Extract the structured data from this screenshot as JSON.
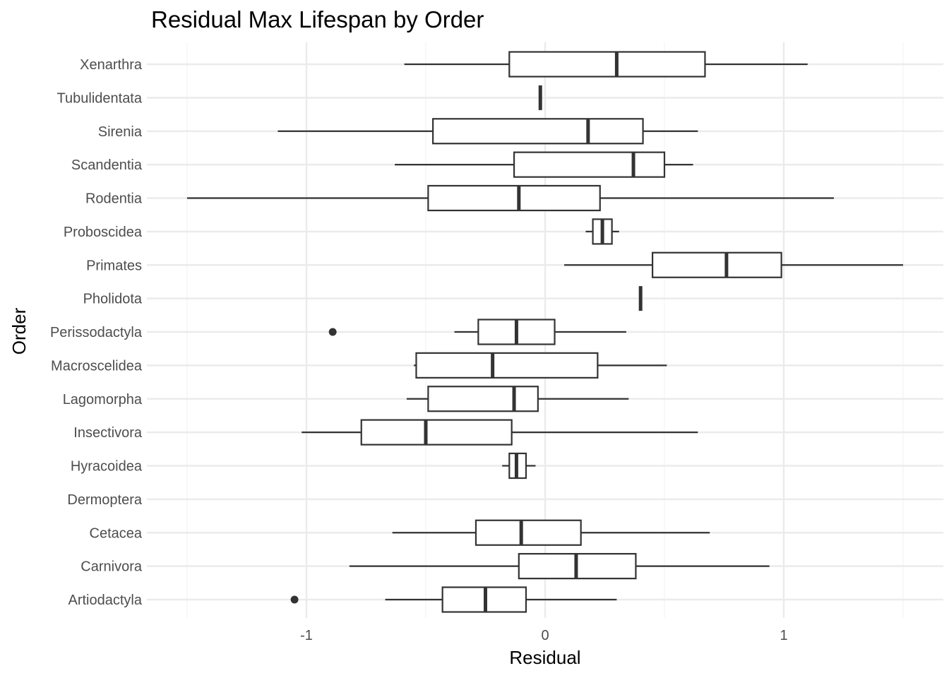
{
  "chart_data": {
    "type": "boxplot",
    "title": "Residual Max Lifespan by Order",
    "xlabel": "Residual",
    "ylabel": "Order",
    "xlim": [
      -1.6,
      1.6
    ],
    "xticks": [
      {
        "value": -1,
        "label": "-1"
      },
      {
        "value": 0,
        "label": "0"
      },
      {
        "value": 1,
        "label": "1"
      }
    ],
    "grid": true,
    "categories": [
      "Artiodactyla",
      "Carnivora",
      "Cetacea",
      "Dermoptera",
      "Hyracoidea",
      "Insectivora",
      "Lagomorpha",
      "Macroscelidea",
      "Perissodactyla",
      "Pholidota",
      "Primates",
      "Proboscidea",
      "Rodentia",
      "Scandentia",
      "Sirenia",
      "Tubulidentata",
      "Xenarthra"
    ],
    "boxes": [
      {
        "category": "Artiodactyla",
        "min": -0.67,
        "q1": -0.43,
        "median": -0.25,
        "q3": -0.08,
        "max": 0.3,
        "outliers": [
          -1.05
        ]
      },
      {
        "category": "Carnivora",
        "min": -0.82,
        "q1": -0.11,
        "median": 0.13,
        "q3": 0.38,
        "max": 0.94,
        "outliers": []
      },
      {
        "category": "Cetacea",
        "min": -0.64,
        "q1": -0.29,
        "median": -0.1,
        "q3": 0.15,
        "max": 0.69,
        "outliers": []
      },
      {
        "category": "Dermoptera",
        "min": null,
        "q1": null,
        "median": null,
        "q3": null,
        "max": null,
        "outliers": []
      },
      {
        "category": "Hyracoidea",
        "min": -0.18,
        "q1": -0.15,
        "median": -0.12,
        "q3": -0.08,
        "max": -0.04,
        "outliers": []
      },
      {
        "category": "Insectivora",
        "min": -1.02,
        "q1": -0.77,
        "median": -0.5,
        "q3": -0.14,
        "max": 0.64,
        "outliers": []
      },
      {
        "category": "Lagomorpha",
        "min": -0.58,
        "q1": -0.49,
        "median": -0.13,
        "q3": -0.03,
        "max": 0.35,
        "outliers": []
      },
      {
        "category": "Macroscelidea",
        "min": -0.55,
        "q1": -0.54,
        "median": -0.22,
        "q3": 0.22,
        "max": 0.51,
        "outliers": []
      },
      {
        "category": "Perissodactyla",
        "min": -0.38,
        "q1": -0.28,
        "median": -0.12,
        "q3": 0.04,
        "max": 0.34,
        "outliers": [
          -0.89
        ]
      },
      {
        "category": "Pholidota",
        "min": 0.4,
        "q1": 0.4,
        "median": 0.4,
        "q3": 0.4,
        "max": 0.4,
        "outliers": []
      },
      {
        "category": "Primates",
        "min": 0.08,
        "q1": 0.45,
        "median": 0.76,
        "q3": 0.99,
        "max": 1.5,
        "outliers": []
      },
      {
        "category": "Proboscidea",
        "min": 0.17,
        "q1": 0.2,
        "median": 0.24,
        "q3": 0.28,
        "max": 0.31,
        "outliers": []
      },
      {
        "category": "Rodentia",
        "min": -1.5,
        "q1": -0.49,
        "median": -0.11,
        "q3": 0.23,
        "max": 1.21,
        "outliers": []
      },
      {
        "category": "Scandentia",
        "min": -0.63,
        "q1": -0.13,
        "median": 0.37,
        "q3": 0.5,
        "max": 0.62,
        "outliers": []
      },
      {
        "category": "Sirenia",
        "min": -1.12,
        "q1": -0.47,
        "median": 0.18,
        "q3": 0.41,
        "max": 0.64,
        "outliers": []
      },
      {
        "category": "Tubulidentata",
        "min": -0.02,
        "q1": -0.02,
        "median": -0.02,
        "q3": -0.02,
        "max": -0.02,
        "outliers": []
      },
      {
        "category": "Xenarthra",
        "min": -0.59,
        "q1": -0.15,
        "median": 0.3,
        "q3": 0.67,
        "max": 1.1,
        "outliers": []
      }
    ]
  },
  "colors": {
    "box_outline": "#333333",
    "box_fill": "#ffffff",
    "grid": "#ebebeb",
    "tick_text": "#4d4d4d",
    "title_text": "#000000"
  }
}
